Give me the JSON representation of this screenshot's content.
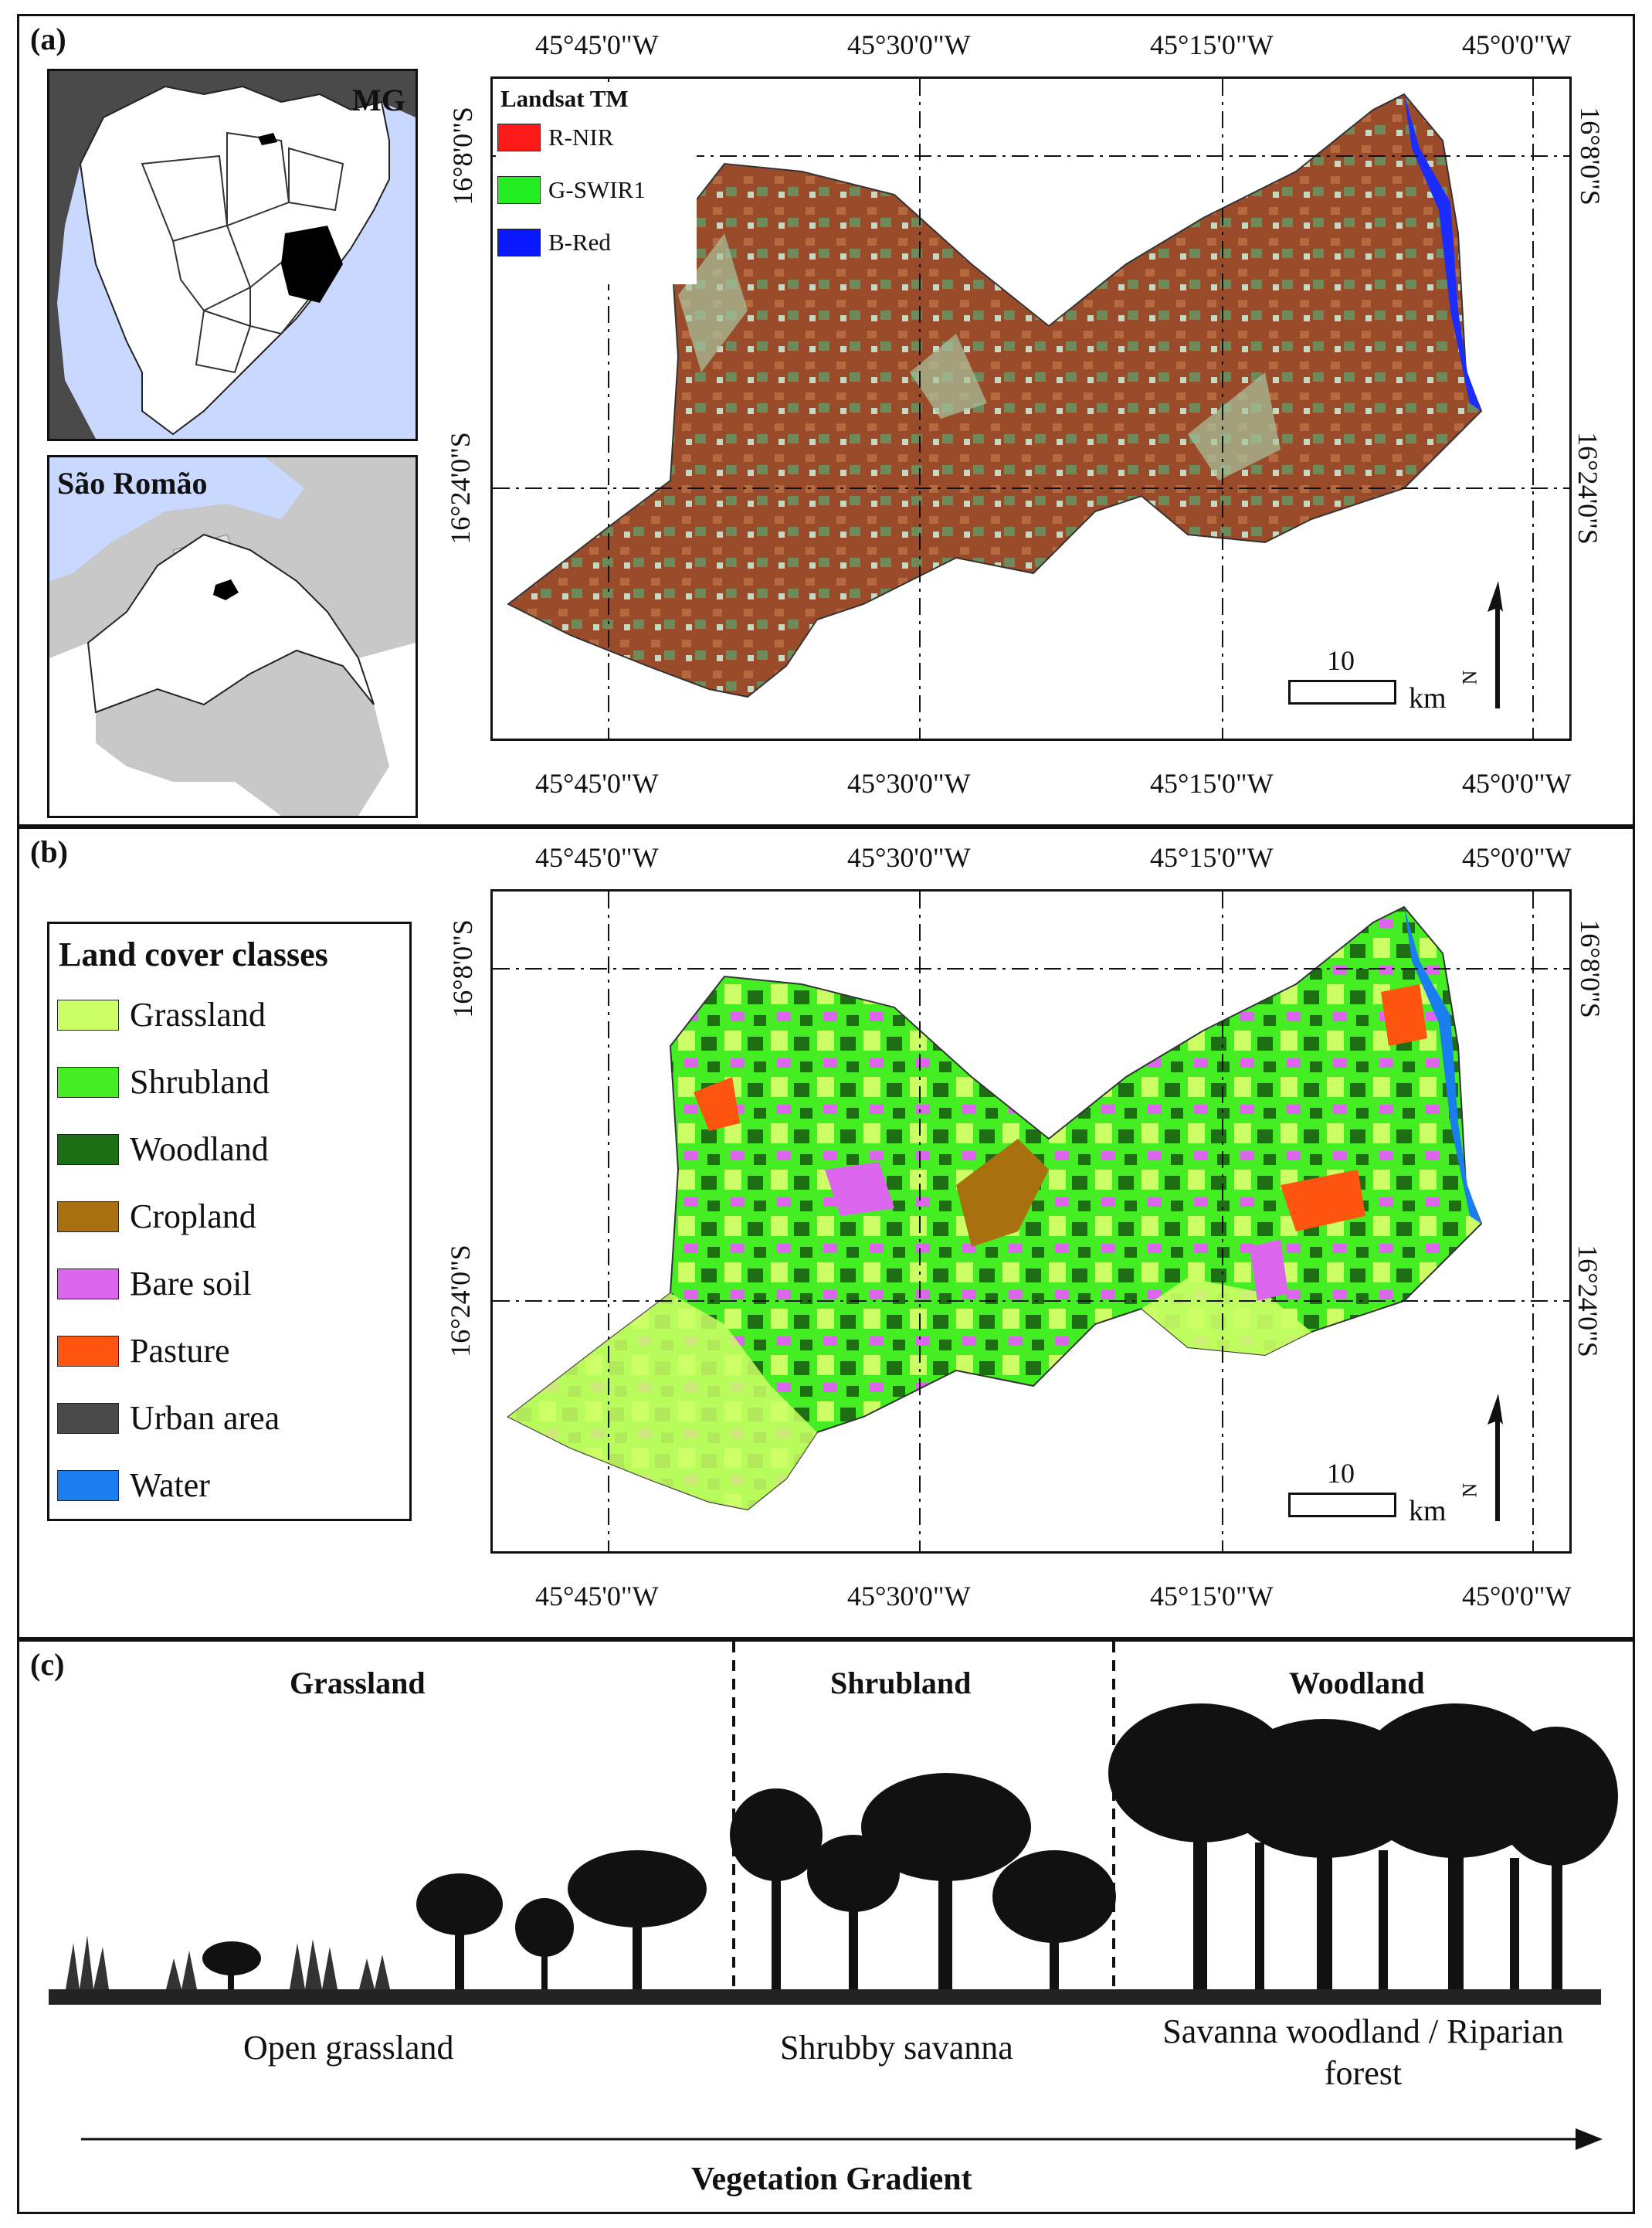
{
  "panel_a": {
    "label": "(a)",
    "inset_brazil_label": "MG",
    "inset_state_label": "São Romão",
    "legend": {
      "title": "Landsat TM",
      "items": [
        {
          "label": "R-NIR",
          "color": "#ff1a1a"
        },
        {
          "label": "G-SWIR1",
          "color": "#22ee22"
        },
        {
          "label": "B-Red",
          "color": "#0a18ff"
        }
      ]
    },
    "lon_ticks": [
      "45°45'0\"W",
      "45°30'0\"W",
      "45°15'0\"W",
      "45°0'0\"W"
    ],
    "lat_ticks": [
      "16°8'0\"S",
      "16°24'0\"S"
    ],
    "scale_value": "10",
    "scale_unit": "km",
    "north_label": "N"
  },
  "panel_b": {
    "label": "(b)",
    "legend": {
      "title": "Land cover classes",
      "items": [
        {
          "label": "Grassland",
          "color": "#ccff66"
        },
        {
          "label": "Shrubland",
          "color": "#44ee22"
        },
        {
          "label": "Woodland",
          "color": "#1e6e14"
        },
        {
          "label": "Cropland",
          "color": "#a8700e"
        },
        {
          "label": "Bare soil",
          "color": "#dd66ee"
        },
        {
          "label": "Pasture",
          "color": "#ff5511"
        },
        {
          "label": "Urban area",
          "color": "#4a4a4a"
        },
        {
          "label": "Water",
          "color": "#1a7ef0"
        }
      ]
    },
    "lon_ticks": [
      "45°45'0\"W",
      "45°30'0\"W",
      "45°15'0\"W",
      "45°0'0\"W"
    ],
    "lat_ticks": [
      "16°8'0\"S",
      "16°24'0\"S"
    ],
    "scale_value": "10",
    "scale_unit": "km",
    "north_label": "N"
  },
  "panel_c": {
    "label": "(c)",
    "zones": [
      {
        "title": "Grassland",
        "caption": "Open grassland"
      },
      {
        "title": "Shrubland",
        "caption": "Shrubby savanna"
      },
      {
        "title": "Woodland",
        "caption": "Savanna woodland / Riparian forest"
      }
    ],
    "axis_label": "Vegetation Gradient"
  }
}
